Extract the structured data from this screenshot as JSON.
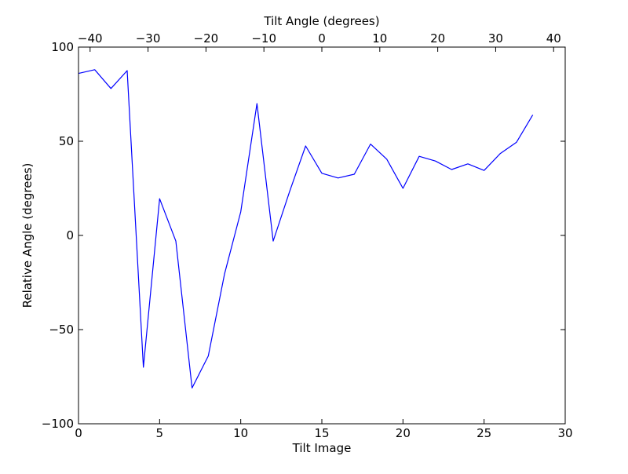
{
  "chart_data": {
    "type": "line",
    "xlabel": "Tilt Image",
    "ylabel": "Relative Angle (degrees)",
    "top_xlabel": "Tilt Angle (degrees)",
    "xlim": [
      0,
      30
    ],
    "ylim": [
      -100,
      100
    ],
    "top_xlim": [
      -42,
      42
    ],
    "x_ticks": [
      0,
      5,
      10,
      15,
      20,
      25,
      30
    ],
    "y_ticks": [
      -100,
      -50,
      0,
      50,
      100
    ],
    "top_x_ticks": [
      -40,
      -30,
      -20,
      -10,
      0,
      10,
      20,
      30,
      40
    ],
    "x_tick_labels": [
      "0",
      "5",
      "10",
      "15",
      "20",
      "25",
      "30"
    ],
    "y_tick_labels": [
      "−100",
      "−50",
      "0",
      "50",
      "100"
    ],
    "top_x_tick_labels": [
      "−40",
      "−30",
      "−20",
      "−10",
      "0",
      "10",
      "20",
      "30",
      "40"
    ],
    "grid": false,
    "series": [
      {
        "color": "#0000ff",
        "x": [
          0,
          1,
          2,
          3,
          4,
          5,
          6,
          7,
          8,
          9,
          10,
          11,
          12,
          13,
          14,
          15,
          16,
          17,
          18,
          19,
          20,
          21,
          22,
          23,
          24,
          25,
          26,
          27,
          28
        ],
        "values": [
          86.0,
          88.0,
          78.0,
          87.5,
          -70.0,
          19.5,
          -3.0,
          -81.0,
          -64.0,
          -20.5,
          12.5,
          70.0,
          -3.0,
          23.0,
          47.5,
          33.0,
          30.5,
          32.5,
          48.5,
          40.5,
          25.0,
          42.0,
          39.5,
          35.0,
          38.0,
          34.5,
          43.5,
          49.5,
          64.0
        ]
      }
    ]
  }
}
